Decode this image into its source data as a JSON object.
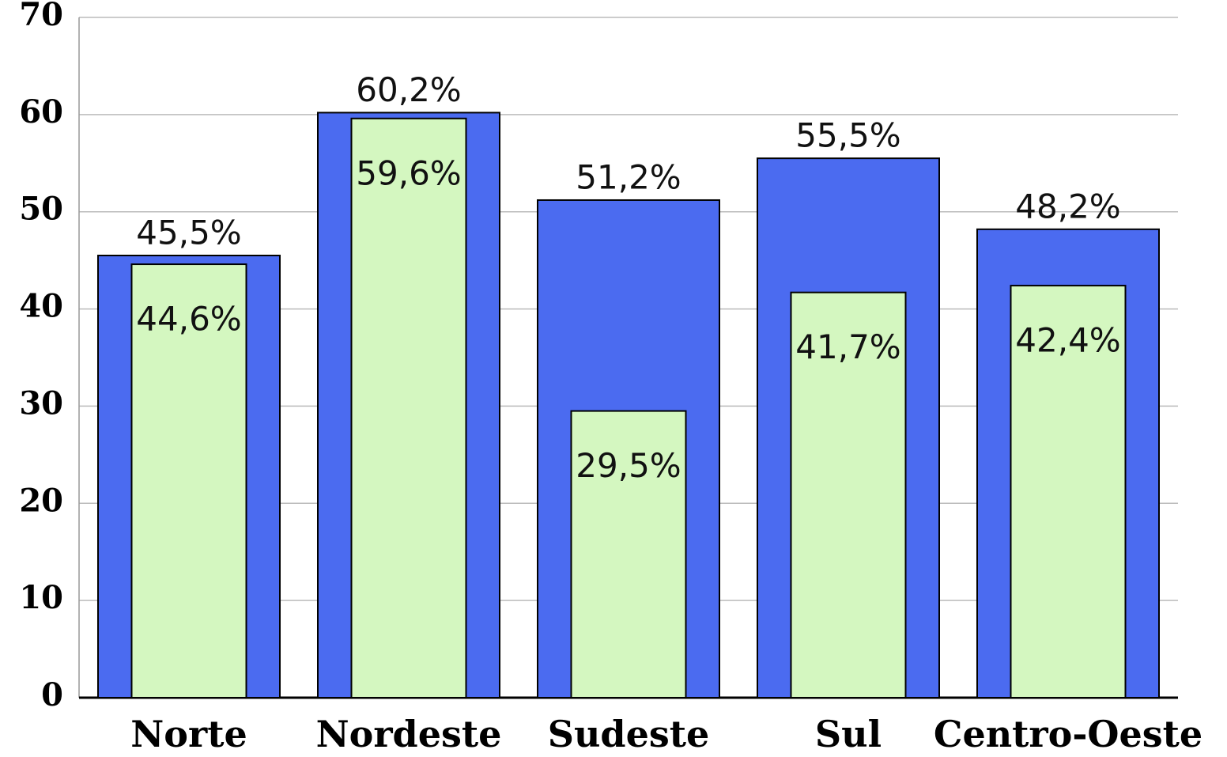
{
  "chart_data": {
    "type": "bar",
    "categories": [
      "Norte",
      "Nordeste",
      "Sudeste",
      "Sul",
      "Centro-Oeste"
    ],
    "series": [
      {
        "color": "#4b6bf0",
        "values": [
          45.5,
          60.2,
          51.2,
          55.5,
          48.2
        ],
        "value_labels": [
          "45,5%",
          "60,2%",
          "51,2%",
          "55,5%",
          "48,2%"
        ]
      },
      {
        "color": "#d4f7c0",
        "values": [
          44.6,
          59.6,
          29.5,
          41.7,
          42.4
        ],
        "value_labels": [
          "44,6%",
          "59,6%",
          "29,5%",
          "41,7%",
          "42,4%"
        ]
      }
    ],
    "ylim": [
      0,
      70
    ],
    "yticks": [
      0,
      10,
      20,
      30,
      40,
      50,
      60,
      70
    ],
    "grid": true
  }
}
